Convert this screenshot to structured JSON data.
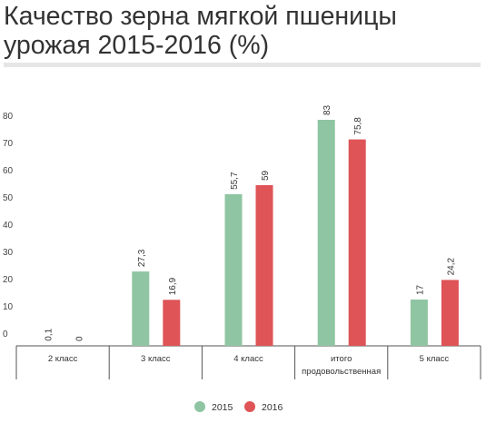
{
  "page": {
    "title": "Качество зерна мягкой пшеницы урожая 2015-2016 (%)"
  },
  "colors": {
    "series_2015": "#8fc5a2",
    "series_2016": "#de5457",
    "axis": "#555555",
    "divider": "#e6e6e6"
  },
  "chart_data": {
    "type": "bar",
    "title": "Качество зерна мягкой пшеницы урожая 2015-2016 (%)",
    "xlabel": "",
    "ylabel": "",
    "ylim": [
      0,
      85
    ],
    "yticks": [
      0,
      10,
      20,
      30,
      40,
      50,
      60,
      70,
      80
    ],
    "grid": false,
    "legend_position": "bottom-center",
    "categories": [
      "2 класс",
      "3 класс",
      "4 класс",
      "итого продовольственная",
      "5 класс"
    ],
    "category_lines": [
      [
        "2 класс"
      ],
      [
        "3 класс"
      ],
      [
        "4 класс"
      ],
      [
        "итого",
        "продовольственная"
      ],
      [
        "5 класс"
      ]
    ],
    "series": [
      {
        "name": "2015",
        "color": "#8fc5a2",
        "values": [
          0.1,
          27.3,
          55.7,
          83,
          17
        ],
        "labels": [
          "0,1",
          "27,3",
          "55,7",
          "83",
          "17"
        ]
      },
      {
        "name": "2016",
        "color": "#de5457",
        "values": [
          0,
          16.9,
          59,
          75.8,
          24.2
        ],
        "labels": [
          "0",
          "16,9",
          "59",
          "75,8",
          "24,2"
        ]
      }
    ]
  }
}
